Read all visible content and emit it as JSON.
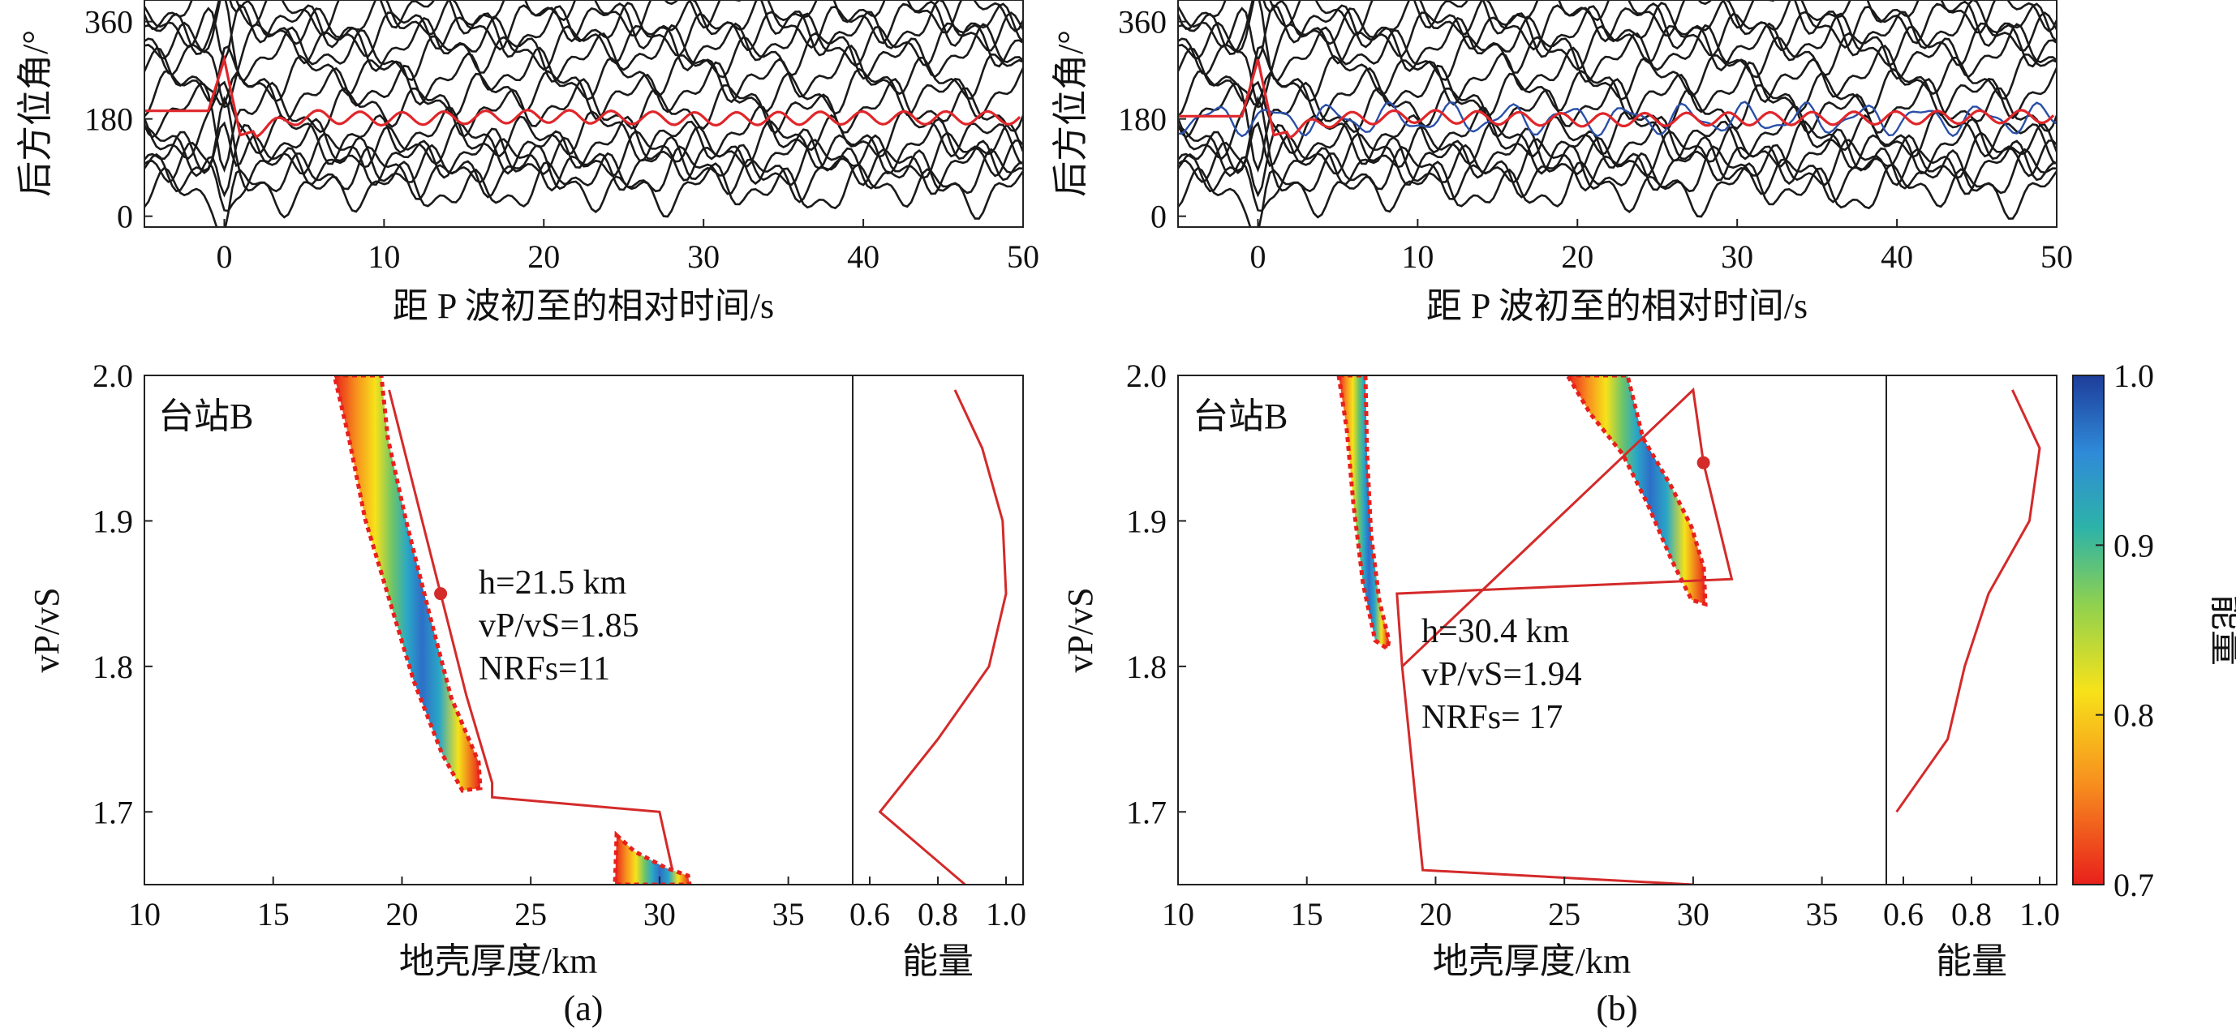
{
  "panels": [
    {
      "id": "a",
      "caption": "(a)",
      "station": "台站B",
      "waveform_ylabel": "后方位角/°",
      "waveform_xlabel": "距 P 波初至的相对时间/s",
      "hk_xlabel": "地壳厚度/km",
      "hk_ylabel": "vP/vS",
      "energy_label": "能量",
      "annotation": {
        "h": "h=21.5 km",
        "ratio": "vP/vS=1.85",
        "nrf": "NRFs=11"
      }
    },
    {
      "id": "b",
      "caption": "(b)",
      "station": "台站B",
      "waveform_ylabel": "后方位角/°",
      "waveform_xlabel": "距 P 波初至的相对时间/s",
      "hk_xlabel": "地壳厚度/km",
      "hk_ylabel": "vP/vS",
      "energy_label": "能量",
      "annotation": {
        "h": "h=30.4 km",
        "ratio": "vP/vS=1.94",
        "nrf": "NRFs= 17"
      }
    }
  ],
  "colorbar": {
    "label": "能量",
    "ticks": [
      "0.7",
      "0.8",
      "0.9",
      "1.0"
    ],
    "colors": [
      "#e8201c",
      "#f7e21a",
      "#2db3a8",
      "#1e3d9a"
    ]
  },
  "colors": {
    "trace": "#1a1a1a",
    "mean_trace": "#e0262a",
    "blue_trace": "#2a4fa8",
    "path": "#d42a2a"
  },
  "chart_data": [
    {
      "type": "line",
      "title": "",
      "xlabel": "距 P 波初至的相对时间/s",
      "ylabel": "后方位角/°",
      "xlim": [
        -5,
        50
      ],
      "ylim": [
        -20,
        400
      ],
      "xticks": [
        0,
        10,
        20,
        30,
        40,
        50
      ],
      "yticks": [
        0,
        180,
        360
      ],
      "series": [
        {
          "values_note": "",
          "x": [
            -5,
            -1,
            0,
            1,
            5,
            10,
            20,
            30,
            40,
            50
          ],
          "y": [
            195,
            195,
            290,
            150,
            185,
            180,
            185,
            180,
            182,
            182
          ]
        }
      ]
    },
    {
      "type": "line",
      "title": "",
      "xlabel": "距 P 波初至的相对时间/s",
      "ylabel": "后方位角/°",
      "xlim": [
        -5,
        50
      ],
      "ylim": [
        -20,
        400
      ],
      "xticks": [
        0,
        10,
        20,
        30,
        40,
        50
      ],
      "yticks": [
        0,
        180,
        360
      ],
      "series": [
        {
          "x": [
            -5,
            -1,
            0,
            1,
            5,
            10,
            20,
            30,
            40,
            50
          ],
          "y": [
            185,
            185,
            290,
            150,
            180,
            185,
            178,
            180,
            182,
            185
          ]
        }
      ]
    },
    {
      "type": "heatmap",
      "xlabel": "地壳厚度/km",
      "ylabel": "vP/vS",
      "xlim": [
        10,
        37.5
      ],
      "ylim": [
        1.65,
        2.0
      ],
      "xticks": [
        10,
        15,
        20,
        25,
        30,
        35
      ],
      "yticks": [
        1.7,
        1.8,
        1.9,
        2.0
      ],
      "best_h": 21.5,
      "best_ratio": 1.85,
      "n_rfs": 11,
      "bootstrap_path": {
        "h": [
          19.5,
          20.5,
          21.5,
          22.5,
          23.5,
          23.5,
          30,
          30.5
        ],
        "ratio": [
          1.99,
          1.92,
          1.85,
          1.78,
          1.72,
          1.71,
          1.7,
          1.66
        ]
      },
      "energy": {
        "xlim": [
          0.55,
          1.05
        ],
        "xticks": [
          0.6,
          0.8,
          1.0
        ],
        "ratio": [
          1.99,
          1.95,
          1.9,
          1.85,
          1.8,
          1.75,
          1.7,
          1.65
        ],
        "value": [
          0.85,
          0.93,
          0.99,
          1.0,
          0.95,
          0.8,
          0.63,
          0.88
        ]
      }
    },
    {
      "type": "heatmap",
      "xlabel": "地壳厚度/km",
      "ylabel": "vP/vS",
      "xlim": [
        10,
        37.5
      ],
      "ylim": [
        1.65,
        2.0
      ],
      "xticks": [
        10,
        15,
        20,
        25,
        30,
        35
      ],
      "yticks": [
        1.7,
        1.8,
        1.9,
        2.0
      ],
      "best_h": 30.4,
      "best_ratio": 1.94,
      "n_rfs": 17,
      "bootstrap_path": {
        "h": [
          18.7,
          18.5,
          31.5,
          30.4,
          30.0,
          18.7,
          19.5,
          30.0
        ],
        "ratio": [
          1.8,
          1.85,
          1.86,
          1.94,
          1.99,
          1.8,
          1.66,
          1.65
        ]
      },
      "energy": {
        "xlim": [
          0.55,
          1.05
        ],
        "xticks": [
          0.6,
          0.8,
          1.0
        ],
        "ratio": [
          1.99,
          1.95,
          1.9,
          1.85,
          1.8,
          1.75,
          1.7
        ],
        "value": [
          0.92,
          1.0,
          0.97,
          0.85,
          0.78,
          0.73,
          0.58
        ]
      }
    }
  ]
}
